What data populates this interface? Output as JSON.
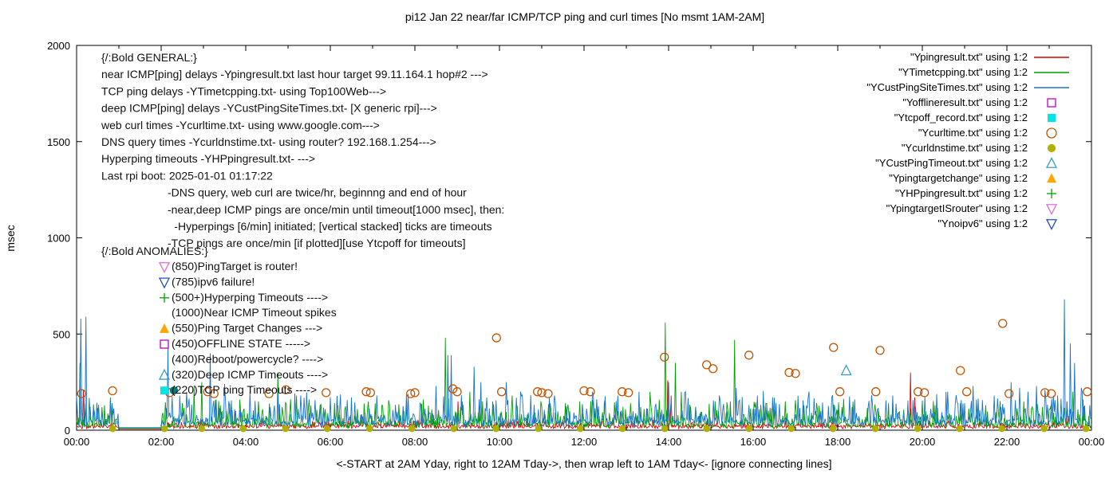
{
  "title": "pi12 Jan 22  near/far ICMP/TCP ping and curl times [No msmt 1AM-2AM]",
  "ylabel": "msec",
  "xlabel": "<-START at 2AM Yday, right to 12AM Tday->, then wrap left to 1AM Tday<- [ignore connecting lines]",
  "legend": {
    "entries": [
      {
        "label": "\"Ypingresult.txt\" using 1:2",
        "kind": "line",
        "color": "#dd0000"
      },
      {
        "label": "\"YTimetcpping.txt\" using 1:2",
        "kind": "line",
        "color": "#00a000"
      },
      {
        "label": "\"YCustPingSiteTimes.txt\" using 1:2",
        "kind": "line",
        "color": "#1874cd"
      },
      {
        "label": "\"Yofflineresult.txt\" using 1:2",
        "kind": "square-open",
        "color": "#bf00bf"
      },
      {
        "label": "\"Ytcpoff_record.txt\" using 1:2",
        "kind": "square-filled",
        "color": "#00e5e5"
      },
      {
        "label": "\"Ycurltime.txt\" using 1:2",
        "kind": "circle-open",
        "color": "#c25400"
      },
      {
        "label": "\"Ycurldnstime.txt\" using 1:2",
        "kind": "circle-filled",
        "color": "#b0b000"
      },
      {
        "label": "\"YCustPingTimeout.txt\" using 1:2",
        "kind": "tri-up-open",
        "color": "#3aa0c8"
      },
      {
        "label": "\"Ypingtargetchange\" using 1:2",
        "kind": "tri-up-filled",
        "color": "#ffa500"
      },
      {
        "label": "\"YHPpingresult.txt\" using 1:2",
        "kind": "plus",
        "color": "#00a000"
      },
      {
        "label": "\"YpingtargetISrouter\" using 1:2",
        "kind": "tri-down-open",
        "color": "#da70d6"
      },
      {
        "label": "\"Ynoipv6\" using 1:2",
        "kind": "tri-down-open",
        "color": "#2050c0"
      }
    ]
  },
  "annotations": {
    "general": [
      {
        "text": "{/:Bold GENERAL:}",
        "indent": 0
      },
      {
        "text": "near ICMP[ping] delays -Ypingresult.txt last hour target 99.11.164.1 hop#2 --->",
        "indent": 0
      },
      {
        "text": "TCP ping delays -YTimetcpping.txt- using Top100Web--->",
        "indent": 0
      },
      {
        "text": "deep ICMP[ping] delays -YCustPingSiteTimes.txt- [X generic rpi]--->",
        "indent": 0
      },
      {
        "text": "web curl times -Ycurltime.txt- using www.google.com--->",
        "indent": 0
      },
      {
        "text": "DNS query times -Ycurldnstime.txt- using router? 192.168.1.254--->",
        "indent": 0
      },
      {
        "text": "Hyperping timeouts -YHPpingresult.txt- --->",
        "indent": 0
      },
      {
        "text": "Last rpi boot: 2025-01-01 01:17:22",
        "indent": 0
      },
      {
        "text": "-DNS query, web curl are twice/hr, beginnng and end of hour",
        "indent": 1
      },
      {
        "text": "-near,deep ICMP pings are once/min until timeout[1000 msec], then:",
        "indent": 1
      },
      {
        "text": "-Hyperpings [6/min] initiated; [vertical stacked] ticks are timeouts",
        "indent": 1.1
      },
      {
        "text": "-TCP pings are once/min [if plotted][use Ytcpoff for timeouts]",
        "indent": 1
      }
    ],
    "anomalies_header": "{/:Bold ANOMALIES:}",
    "anomalies": [
      {
        "marker": "tri-down-open",
        "color": "#da70d6",
        "text": "(850)PingTarget is router!"
      },
      {
        "marker": "tri-down-open",
        "color": "#2050c0",
        "text": "(785)ipv6 failure!"
      },
      {
        "marker": "plus",
        "color": "#00a000",
        "text": "(500+)Hyperping Timeouts ---->"
      },
      {
        "marker": "none",
        "color": "",
        "text": "(1000)Near ICMP Timeout spikes"
      },
      {
        "marker": "tri-up-filled",
        "color": "#ffa500",
        "text": "(550)Ping Target Changes --->"
      },
      {
        "marker": "square-open",
        "color": "#bf00bf",
        "text": "(450)OFFLINE STATE ----->"
      },
      {
        "marker": "none",
        "color": "",
        "text": "(400)Reboot/powercycle? ---->"
      },
      {
        "marker": "tri-up-open",
        "color": "#3aa0c8",
        "text": "(320)Deep ICMP Timeouts ---->"
      },
      {
        "marker": "square-filled",
        "color": "#00e5e5",
        "marker2": "circle-filled",
        "color2": "#007a7a",
        "text": "(220)TCP ping Timeouts ---->"
      }
    ]
  },
  "chart_data": {
    "type": "line",
    "xlim": [
      0,
      24
    ],
    "ylim": [
      0,
      2000
    ],
    "x_ticks": [
      "00:00",
      "02:00",
      "04:00",
      "06:00",
      "08:00",
      "10:00",
      "12:00",
      "14:00",
      "16:00",
      "18:00",
      "20:00",
      "22:00",
      "00:00"
    ],
    "y_ticks": [
      0,
      500,
      1000,
      1500,
      2000
    ],
    "gap_hours": [
      1,
      2
    ],
    "grid": false,
    "legend_position": "top-right",
    "series": [
      {
        "name": "Ypingresult",
        "color": "#dd0000",
        "baseline": 20,
        "noise": 10,
        "spikes": [
          [
            0.15,
            210
          ],
          [
            9.02,
            150
          ],
          [
            13.98,
            260
          ],
          [
            14.06,
            180
          ],
          [
            19.72,
            300
          ],
          [
            19.82,
            170
          ],
          [
            23.42,
            150
          ]
        ]
      },
      {
        "name": "YTimetcpping",
        "color": "#00a000",
        "baseline": 30,
        "noise": 45,
        "spikes": [
          [
            0.08,
            350
          ],
          [
            0.6,
            120
          ],
          [
            2.5,
            140
          ],
          [
            2.78,
            230
          ],
          [
            2.95,
            250
          ],
          [
            3.3,
            160
          ],
          [
            4.3,
            150
          ],
          [
            4.75,
            300
          ],
          [
            5.2,
            180
          ],
          [
            5.5,
            160
          ],
          [
            6.1,
            140
          ],
          [
            6.9,
            150
          ],
          [
            7.4,
            130
          ],
          [
            8.2,
            160
          ],
          [
            8.72,
            480
          ],
          [
            9.3,
            200
          ],
          [
            9.6,
            150
          ],
          [
            10.3,
            180
          ],
          [
            11.2,
            140
          ],
          [
            11.9,
            150
          ],
          [
            12.5,
            160
          ],
          [
            13.1,
            140
          ],
          [
            13.55,
            200
          ],
          [
            13.92,
            560
          ],
          [
            14.15,
            350
          ],
          [
            14.3,
            200
          ],
          [
            15.1,
            150
          ],
          [
            15.55,
            470
          ],
          [
            16.3,
            140
          ],
          [
            17.2,
            130
          ],
          [
            18.1,
            120
          ],
          [
            19.2,
            140
          ],
          [
            20.3,
            130
          ],
          [
            20.9,
            140
          ],
          [
            21.5,
            130
          ],
          [
            22.4,
            150
          ],
          [
            23.2,
            180
          ],
          [
            23.55,
            200
          ],
          [
            23.8,
            160
          ]
        ]
      },
      {
        "name": "YCustPingSiteTimes",
        "color": "#1874cd",
        "baseline": 45,
        "noise": 50,
        "spikes": [
          [
            0.1,
            580
          ],
          [
            0.22,
            590
          ],
          [
            2.15,
            430
          ],
          [
            2.6,
            200
          ],
          [
            3.15,
            400
          ],
          [
            3.5,
            240
          ],
          [
            4.1,
            200
          ],
          [
            5.3,
            180
          ],
          [
            6.5,
            170
          ],
          [
            7.1,
            180
          ],
          [
            8.5,
            230
          ],
          [
            8.78,
            390
          ],
          [
            8.86,
            390
          ],
          [
            9.4,
            330
          ],
          [
            9.55,
            250
          ],
          [
            10.15,
            250
          ],
          [
            10.5,
            200
          ],
          [
            11.3,
            180
          ],
          [
            12.2,
            200
          ],
          [
            12.8,
            180
          ],
          [
            13.3,
            200
          ],
          [
            14.0,
            250
          ],
          [
            14.4,
            200
          ],
          [
            15.2,
            180
          ],
          [
            15.6,
            220
          ],
          [
            16.1,
            180
          ],
          [
            17.3,
            170
          ],
          [
            18.4,
            160
          ],
          [
            19.3,
            180
          ],
          [
            20.6,
            200
          ],
          [
            21.2,
            230
          ],
          [
            21.7,
            180
          ],
          [
            22.1,
            250
          ],
          [
            22.3,
            220
          ],
          [
            22.5,
            200
          ],
          [
            22.7,
            230
          ],
          [
            22.9,
            210
          ],
          [
            23.1,
            180
          ],
          [
            23.35,
            680
          ],
          [
            23.5,
            450
          ],
          [
            23.6,
            350
          ],
          [
            23.75,
            220
          ]
        ]
      }
    ],
    "markers": [
      {
        "name": "curl-times",
        "shape": "circle-open",
        "color": "#c25400",
        "size": 5,
        "points": [
          [
            0.12,
            190
          ],
          [
            0.85,
            205
          ],
          [
            2.2,
            195
          ],
          [
            3.1,
            200
          ],
          [
            3.25,
            190
          ],
          [
            4.55,
            190
          ],
          [
            4.95,
            210
          ],
          [
            5.9,
            195
          ],
          [
            6.85,
            200
          ],
          [
            6.95,
            195
          ],
          [
            7.9,
            190
          ],
          [
            8.0,
            195
          ],
          [
            8.9,
            215
          ],
          [
            9.0,
            200
          ],
          [
            9.93,
            480
          ],
          [
            10.05,
            200
          ],
          [
            10.9,
            200
          ],
          [
            11.0,
            195
          ],
          [
            11.15,
            190
          ],
          [
            12.0,
            205
          ],
          [
            12.15,
            200
          ],
          [
            12.9,
            200
          ],
          [
            13.05,
            195
          ],
          [
            13.9,
            380
          ],
          [
            14.9,
            340
          ],
          [
            15.05,
            320
          ],
          [
            15.9,
            390
          ],
          [
            16.85,
            300
          ],
          [
            17.0,
            295
          ],
          [
            17.9,
            430
          ],
          [
            18.05,
            200
          ],
          [
            18.9,
            200
          ],
          [
            19.0,
            415
          ],
          [
            19.9,
            200
          ],
          [
            20.05,
            195
          ],
          [
            20.9,
            310
          ],
          [
            21.05,
            200
          ],
          [
            21.9,
            555
          ],
          [
            22.05,
            190
          ],
          [
            22.9,
            195
          ],
          [
            23.05,
            190
          ],
          [
            23.9,
            200
          ]
        ]
      },
      {
        "name": "dns-query-times",
        "shape": "circle-filled",
        "color": "#b0b000",
        "size": 5,
        "points": [
          [
            0.85,
            8
          ],
          [
            2.08,
            8
          ],
          [
            2.96,
            8
          ],
          [
            3.94,
            8
          ],
          [
            4.94,
            8
          ],
          [
            5.93,
            8
          ],
          [
            6.93,
            8
          ],
          [
            7.93,
            8
          ],
          [
            8.92,
            8
          ],
          [
            9.92,
            8
          ],
          [
            10.92,
            8
          ],
          [
            11.91,
            8
          ],
          [
            12.91,
            8
          ],
          [
            13.91,
            8
          ],
          [
            14.9,
            8
          ],
          [
            15.9,
            8
          ],
          [
            16.9,
            8
          ],
          [
            17.89,
            8
          ],
          [
            18.89,
            8
          ],
          [
            19.89,
            8
          ],
          [
            20.88,
            8
          ],
          [
            21.88,
            8
          ],
          [
            22.88,
            8
          ],
          [
            23.87,
            8
          ]
        ]
      },
      {
        "name": "deep-icmp-timeout",
        "shape": "tri-up-open",
        "color": "#3aa0c8",
        "size": 6,
        "points": [
          [
            18.2,
            310
          ]
        ]
      }
    ]
  }
}
